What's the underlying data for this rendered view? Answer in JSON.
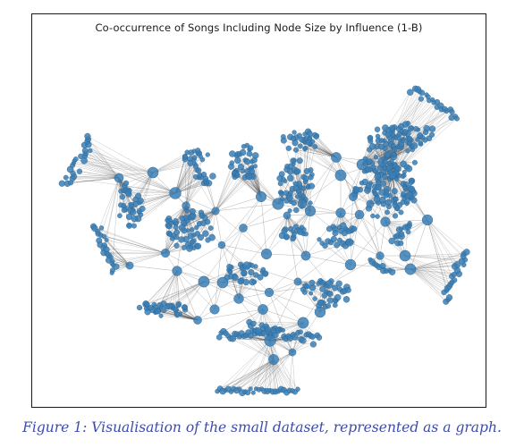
{
  "figure": {
    "title": "Co-occurrence of Songs Including Node Size by Influence (1-B)",
    "caption": "Figure 1: Visualisation of the small dataset, represented as a graph."
  },
  "graph": {
    "node_color": "#3b7fb5",
    "node_edge_color": "#2a5f8a",
    "edge_color": "#4a4a4a",
    "layout": "force-directed",
    "axes": "off"
  }
}
